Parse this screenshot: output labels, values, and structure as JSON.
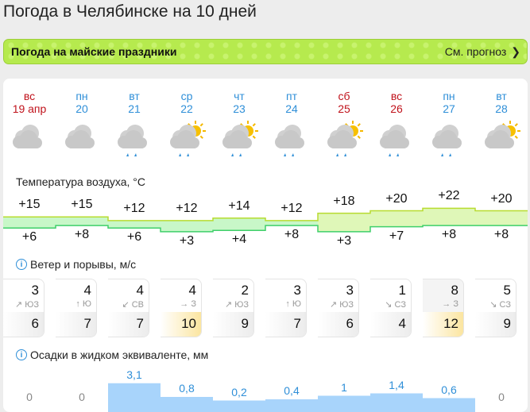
{
  "title": "Погода в Челябинске на 10 дней",
  "banner": {
    "label": "Погода на майские праздники",
    "link": "См. прогноз"
  },
  "days": [
    {
      "dow": "вс",
      "date": "19 апр",
      "weekend": true,
      "icon": "cloudy-icon",
      "max": "+15",
      "min": "+6",
      "tmax": 15,
      "tmin": 6,
      "wind": "3",
      "dir": "↗ ЮЗ",
      "gust": "6",
      "gust_high": false,
      "precip": "0",
      "p": 0
    },
    {
      "dow": "пн",
      "date": "20",
      "weekend": false,
      "icon": "cloudy-icon",
      "max": "+15",
      "min": "+8",
      "tmax": 15,
      "tmin": 8,
      "wind": "4",
      "dir": "↑ Ю",
      "gust": "7",
      "gust_high": false,
      "precip": "0",
      "p": 0
    },
    {
      "dow": "вт",
      "date": "21",
      "weekend": false,
      "icon": "cloudy-rain-icon",
      "max": "+12",
      "min": "+6",
      "tmax": 12,
      "tmin": 6,
      "wind": "4",
      "dir": "↙ СВ",
      "gust": "7",
      "gust_high": false,
      "precip": "3,1",
      "p": 3.1
    },
    {
      "dow": "ср",
      "date": "22",
      "weekend": false,
      "icon": "partly-cloudy-rain-icon",
      "max": "+12",
      "min": "+3",
      "tmax": 12,
      "tmin": 3,
      "wind": "4",
      "dir": "→ З",
      "gust": "10",
      "gust_high": true,
      "precip": "0,8",
      "p": 0.8
    },
    {
      "dow": "чт",
      "date": "23",
      "weekend": false,
      "icon": "partly-cloudy-rain-icon",
      "max": "+14",
      "min": "+4",
      "tmax": 14,
      "tmin": 4,
      "wind": "2",
      "dir": "↗ ЮЗ",
      "gust": "9",
      "gust_high": false,
      "precip": "0,2",
      "p": 0.2
    },
    {
      "dow": "пт",
      "date": "24",
      "weekend": false,
      "icon": "cloudy-rain-icon",
      "max": "+12",
      "min": "+8",
      "tmax": 12,
      "tmin": 8,
      "wind": "3",
      "dir": "↑ Ю",
      "gust": "7",
      "gust_high": false,
      "precip": "0,4",
      "p": 0.4
    },
    {
      "dow": "сб",
      "date": "25",
      "weekend": true,
      "icon": "partly-cloudy-rain-icon",
      "max": "+18",
      "min": "+3",
      "tmax": 18,
      "tmin": 3,
      "wind": "3",
      "dir": "↗ ЮЗ",
      "gust": "6",
      "gust_high": false,
      "precip": "1",
      "p": 1
    },
    {
      "dow": "вс",
      "date": "26",
      "weekend": true,
      "icon": "cloudy-rain-icon",
      "max": "+20",
      "min": "+7",
      "tmax": 20,
      "tmin": 7,
      "wind": "1",
      "dir": "↘ СЗ",
      "gust": "4",
      "gust_high": false,
      "precip": "1,4",
      "p": 1.4
    },
    {
      "dow": "пн",
      "date": "27",
      "weekend": false,
      "icon": "cloudy-rain-icon",
      "max": "+22",
      "min": "+8",
      "tmax": 22,
      "tmin": 8,
      "wind": "8",
      "dir": "→ З",
      "gust": "12",
      "gust_high": true,
      "precip": "0,6",
      "p": 0.6
    },
    {
      "dow": "вт",
      "date": "28",
      "weekend": false,
      "icon": "partly-cloudy-icon",
      "max": "+20",
      "min": "+8",
      "tmax": 20,
      "tmin": 8,
      "wind": "5",
      "dir": "↘ СЗ",
      "gust": "9",
      "gust_high": false,
      "precip": "0",
      "p": 0
    }
  ],
  "sections": {
    "temp": "Температура воздуха, °C",
    "wind": "Ветер и порывы, м/с",
    "precip": "Осадки в жидком эквиваленте, мм"
  },
  "colors": {
    "banner": "#b6ea4e",
    "weekend": "#c0121b",
    "weekday": "#2f8fd8",
    "precip": "#a8d4fb",
    "gust_high": "#fbe5a0"
  }
}
